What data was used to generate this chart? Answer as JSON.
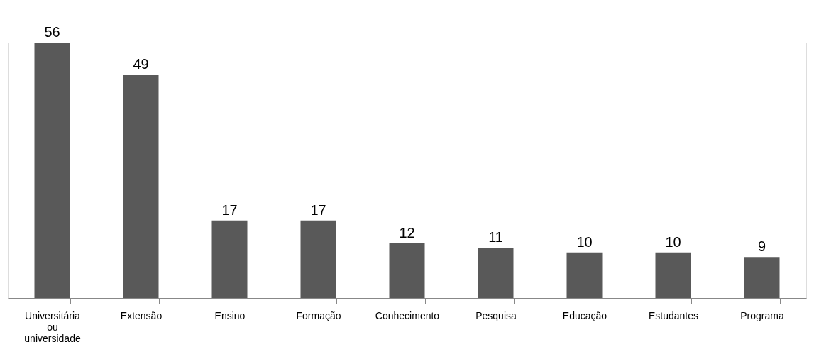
{
  "chart_data": {
    "type": "bar",
    "categories": [
      "Universitária ou universidade",
      "Extensão",
      "Ensino",
      "Formação",
      "Conhecimento",
      "Pesquisa",
      "Educação",
      "Estudantes",
      "Programa"
    ],
    "values": [
      56,
      49,
      17,
      17,
      12,
      11,
      10,
      10,
      9
    ],
    "color": "#595959",
    "data_labels": true
  }
}
